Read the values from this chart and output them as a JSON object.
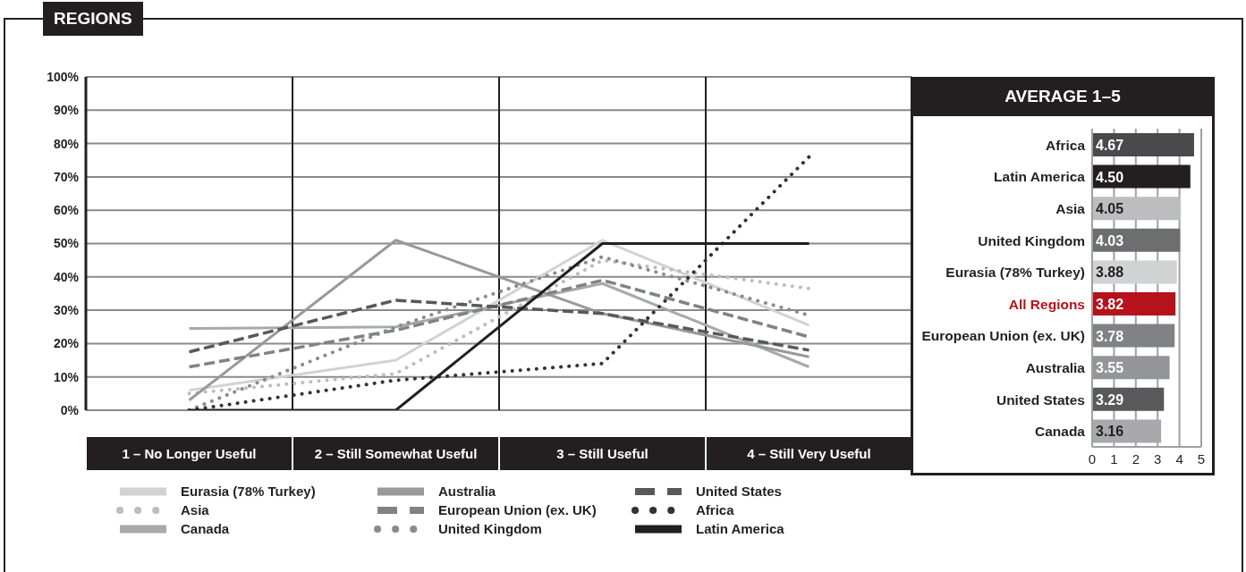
{
  "chart_data": [
    {
      "type": "line",
      "title": "REGIONS",
      "categories": [
        "1 – No Longer Useful",
        "2 – Still Somewhat Useful",
        "3 – Still Useful",
        "4 – Still Very Useful"
      ],
      "series": [
        {
          "name": "Eurasia (78% Turkey)",
          "color": "#d1d2d4",
          "line_style": "solid",
          "values": [
            6,
            15,
            51,
            25.5
          ]
        },
        {
          "name": "Asia",
          "color": "#bcbdbf",
          "line_style": "dotted",
          "values": [
            5,
            11,
            45,
            36.5
          ]
        },
        {
          "name": "Canada",
          "color": "#a7a9ac",
          "line_style": "solid",
          "values": [
            24.5,
            25,
            38,
            13
          ]
        },
        {
          "name": "Australia",
          "color": "#98999b",
          "line_style": "solid",
          "values": [
            3,
            51,
            29,
            16
          ]
        },
        {
          "name": "European Union (ex. UK)",
          "color": "#808285",
          "line_style": "dashed",
          "values": [
            13,
            24,
            39,
            22
          ]
        },
        {
          "name": "United Kingdom",
          "color": "#8a8b8d",
          "line_style": "dotted",
          "values": [
            0,
            25,
            46,
            28.5
          ]
        },
        {
          "name": "United States",
          "color": "#58595b",
          "line_style": "dashed",
          "values": [
            17.5,
            33,
            29,
            18
          ]
        },
        {
          "name": "Africa",
          "color": "#333335",
          "line_style": "dotted",
          "values": [
            0,
            9,
            14,
            76
          ]
        },
        {
          "name": "Latin America",
          "color": "#231f20",
          "line_style": "solid",
          "values": [
            0,
            0,
            50,
            50
          ]
        }
      ],
      "ylim": [
        0,
        100
      ],
      "yticks": [
        {
          "value": 0,
          "label": "0%"
        },
        {
          "value": 10,
          "label": "10%"
        },
        {
          "value": 20,
          "label": "20%"
        },
        {
          "value": 30,
          "label": "30%"
        },
        {
          "value": 40,
          "label": "40%"
        },
        {
          "value": 50,
          "label": "50%"
        },
        {
          "value": 60,
          "label": "60%"
        },
        {
          "value": 70,
          "label": "70%"
        },
        {
          "value": 80,
          "label": "80%"
        },
        {
          "value": 90,
          "label": "90%"
        },
        {
          "value": 100,
          "label": "100%"
        }
      ],
      "grid": true,
      "legend": "bottom",
      "marker": "none"
    },
    {
      "type": "bar",
      "orientation": "horizontal",
      "title": "AVERAGE 1–5",
      "categories": [
        "Africa",
        "Latin America",
        "Asia",
        "United Kingdom",
        "Eurasia (78% Turkey)",
        "All Regions",
        "European Union (ex. UK)",
        "Australia",
        "United States",
        "Canada"
      ],
      "values": [
        4.67,
        4.5,
        4.05,
        4.03,
        3.88,
        3.82,
        3.78,
        3.55,
        3.29,
        3.16
      ],
      "colors": [
        "#4a4a4c",
        "#231f20",
        "#bcbdbf",
        "#6d6e70",
        "#d1d2d4",
        "#b5121b",
        "#808285",
        "#939598",
        "#58595b",
        "#a7a9ac"
      ],
      "value_labels": [
        "4.67",
        "4.50",
        "4.05",
        "4.03",
        "3.88",
        "3.82",
        "3.78",
        "3.55",
        "3.29",
        "3.16"
      ],
      "xlim": [
        0,
        5
      ],
      "xticks": [
        0,
        1,
        2,
        3,
        4,
        5
      ],
      "grid": "x"
    }
  ]
}
